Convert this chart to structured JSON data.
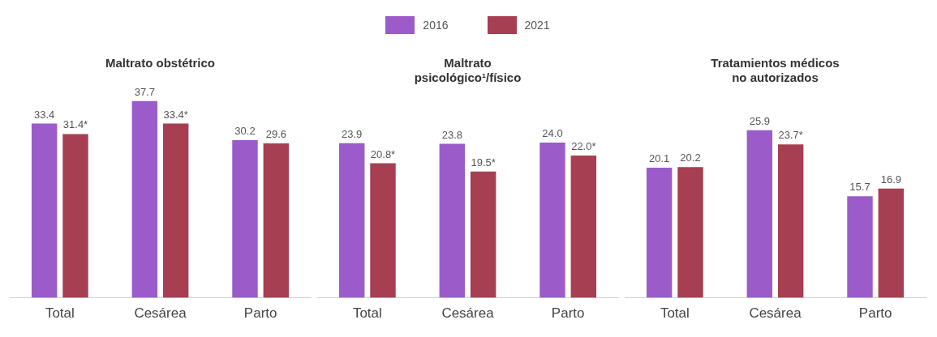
{
  "chart_data": [
    {
      "type": "bar",
      "title": "Maltrato obstétrico",
      "categories": [
        "Total",
        "Cesárea",
        "Parto"
      ],
      "legend": false,
      "tick_labels": "x",
      "series": [
        {
          "color": "#9b5bc9",
          "values": [
            33.4,
            37.7,
            30.2
          ],
          "value_labels": [
            "33.4",
            "37.7",
            "30.2"
          ]
        },
        {
          "color": "#a63f51",
          "values": [
            31.4,
            33.4,
            29.6
          ],
          "value_labels": [
            "31.4*",
            "33.4*",
            "29.6"
          ]
        }
      ]
    },
    {
      "type": "bar",
      "title": "Maltrato\npsicológico¹/físico",
      "categories": [
        "Total",
        "Cesárea",
        "Parto"
      ],
      "legend": "top",
      "tick_labels": "x",
      "series": [
        {
          "name": "2016",
          "color": "#9b5bc9",
          "values": [
            23.9,
            23.8,
            24.0
          ],
          "value_labels": [
            "23.9",
            "23.8",
            "24.0"
          ]
        },
        {
          "name": "2021",
          "color": "#a63f51",
          "values": [
            20.8,
            19.5,
            22.0
          ],
          "value_labels": [
            "20.8*",
            "19.5*",
            "22.0*"
          ]
        }
      ]
    },
    {
      "type": "bar",
      "title": "Tratamientos médicos\nno autorizados",
      "categories": [
        "Total",
        "Cesárea",
        "Parto"
      ],
      "legend": false,
      "tick_labels": "x",
      "series": [
        {
          "color": "#9b5bc9",
          "values": [
            20.1,
            25.9,
            15.7
          ],
          "value_labels": [
            "20.1",
            "25.9",
            "15.7"
          ]
        },
        {
          "color": "#a63f51",
          "values": [
            20.2,
            23.7,
            16.9
          ],
          "value_labels": [
            "20.2",
            "23.7*",
            "16.9"
          ]
        }
      ]
    }
  ]
}
